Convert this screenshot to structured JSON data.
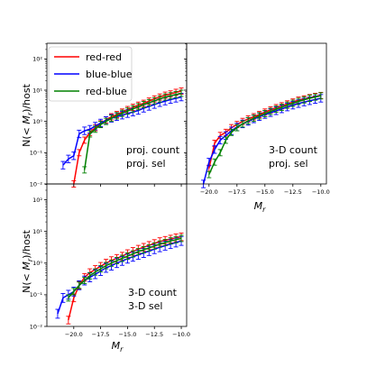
{
  "chart_data": {
    "type": "line",
    "figure_ylabel": "N(< M_r)/host",
    "legend": {
      "placement": "top-left",
      "entries": [
        {
          "name": "red-red",
          "color": "#ff0000"
        },
        {
          "name": "blue-blue",
          "color": "#0000ff"
        },
        {
          "name": "red-blue",
          "color": "#008000"
        }
      ]
    },
    "panels": [
      {
        "id": "top-left",
        "annotation": [
          "proj. count",
          "proj. sel"
        ],
        "xlabel": "",
        "ylabel": "N(< M_r)/host",
        "xlim": [
          -22.5,
          -9.5
        ],
        "ylim_log10": [
          -2,
          2.5
        ],
        "yscale": "log",
        "x_tick_labels": [],
        "y_tick_labels": [
          "10⁻²",
          "10⁻¹",
          "10⁰",
          "10¹",
          "10²"
        ],
        "series": [
          {
            "name": "red-red",
            "color": "#ff0000",
            "x": [
              -20.0,
              -19.5,
              -19.0,
              -18.5,
              -18.0,
              -17.5,
              -17.0,
              -16.5,
              -16.0,
              -15.5,
              -15.0,
              -14.5,
              -14.0,
              -13.5,
              -13.0,
              -12.5,
              -12.0,
              -11.5,
              -11.0,
              -10.5,
              -10.0
            ],
            "y_log10": [
              -2.0,
              -1.0,
              -0.6,
              -0.35,
              -0.2,
              -0.08,
              0.05,
              0.15,
              0.22,
              0.3,
              0.38,
              0.45,
              0.52,
              0.58,
              0.65,
              0.72,
              0.78,
              0.84,
              0.88,
              0.93,
              0.97
            ],
            "err": 0.1
          },
          {
            "name": "blue-blue",
            "color": "#0000ff",
            "x": [
              -21.0,
              -20.5,
              -20.0,
              -19.5,
              -19.0,
              -18.5,
              -18.0,
              -17.5,
              -17.0,
              -16.5,
              -16.0,
              -15.5,
              -15.0,
              -14.5,
              -14.0,
              -13.5,
              -13.0,
              -12.5,
              -12.0,
              -11.5,
              -11.0,
              -10.5,
              -10.0
            ],
            "y_log10": [
              -1.4,
              -1.2,
              -1.1,
              -0.4,
              -0.3,
              -0.25,
              -0.15,
              -0.05,
              0.03,
              0.1,
              0.15,
              0.2,
              0.25,
              0.3,
              0.35,
              0.42,
              0.48,
              0.54,
              0.6,
              0.65,
              0.7,
              0.74,
              0.78
            ],
            "err": 0.12
          },
          {
            "name": "red-blue",
            "color": "#008000",
            "x": [
              -19.0,
              -18.5,
              -18.0,
              -17.5,
              -17.0,
              -16.5,
              -16.0,
              -15.5,
              -15.0,
              -14.5,
              -14.0,
              -13.5,
              -13.0,
              -12.5,
              -12.0,
              -11.5,
              -11.0,
              -10.5,
              -10.0
            ],
            "y_log10": [
              -1.55,
              -0.4,
              -0.25,
              -0.1,
              0.0,
              0.1,
              0.18,
              0.26,
              0.33,
              0.4,
              0.47,
              0.54,
              0.6,
              0.66,
              0.72,
              0.78,
              0.82,
              0.86,
              0.9
            ],
            "err": 0.1
          }
        ]
      },
      {
        "id": "top-right",
        "annotation": [
          "3-D count",
          "proj. sel"
        ],
        "xlabel": "M_r",
        "ylabel": "",
        "xlim": [
          -22.0,
          -9.5
        ],
        "ylim_log10": [
          -2,
          2.5
        ],
        "yscale": "log",
        "x_tick_labels": [
          "−20.0",
          "−17.5",
          "−15.0",
          "−12.5",
          "−10.0"
        ],
        "x_ticks": [
          -20.0,
          -17.5,
          -15.0,
          -12.5,
          -10.0
        ],
        "y_tick_labels": [],
        "series": [
          {
            "name": "red-red",
            "color": "#ff0000",
            "x": [
              -20.0,
              -19.5,
              -19.0,
              -18.5,
              -18.0,
              -17.5,
              -17.0,
              -16.5,
              -16.0,
              -15.5,
              -15.0,
              -14.5,
              -14.0,
              -13.5,
              -13.0,
              -12.5,
              -12.0,
              -11.5,
              -11.0,
              -10.5,
              -10.0
            ],
            "y_log10": [
              -1.5,
              -0.7,
              -0.45,
              -0.35,
              -0.2,
              -0.1,
              0.0,
              0.08,
              0.15,
              0.22,
              0.3,
              0.37,
              0.44,
              0.5,
              0.56,
              0.62,
              0.68,
              0.72,
              0.76,
              0.8,
              0.83
            ],
            "err": 0.1
          },
          {
            "name": "blue-blue",
            "color": "#0000ff",
            "x": [
              -20.5,
              -20.0,
              -19.5,
              -19.0,
              -18.5,
              -18.0,
              -17.5,
              -17.0,
              -16.5,
              -16.0,
              -15.5,
              -15.0,
              -14.5,
              -14.0,
              -13.5,
              -13.0,
              -12.5,
              -12.0,
              -11.5,
              -11.0,
              -10.5,
              -10.0
            ],
            "y_log10": [
              -2.0,
              -1.3,
              -0.9,
              -0.6,
              -0.45,
              -0.3,
              -0.18,
              -0.08,
              0.0,
              0.08,
              0.15,
              0.22,
              0.28,
              0.34,
              0.4,
              0.46,
              0.52,
              0.57,
              0.62,
              0.66,
              0.7,
              0.74
            ],
            "err": 0.12
          },
          {
            "name": "red-blue",
            "color": "#008000",
            "x": [
              -20.0,
              -19.5,
              -19.0,
              -18.5,
              -18.0,
              -17.5,
              -17.0,
              -16.5,
              -16.0,
              -15.5,
              -15.0,
              -14.5,
              -14.0,
              -13.5,
              -13.0,
              -12.5,
              -12.0,
              -11.5,
              -11.0,
              -10.5,
              -10.0
            ],
            "y_log10": [
              -1.7,
              -1.3,
              -1.0,
              -0.6,
              -0.35,
              -0.2,
              -0.08,
              0.02,
              0.1,
              0.18,
              0.25,
              0.32,
              0.39,
              0.45,
              0.52,
              0.58,
              0.64,
              0.69,
              0.74,
              0.78,
              0.82
            ],
            "err": 0.1
          }
        ]
      },
      {
        "id": "bottom-left",
        "annotation": [
          "3-D count",
          "3-D sel"
        ],
        "xlabel": "M_r",
        "ylabel": "N(< M_r)/host",
        "xlim": [
          -22.5,
          -9.5
        ],
        "ylim_log10": [
          -2,
          2.5
        ],
        "yscale": "log",
        "x_tick_labels": [
          "−20.0",
          "−17.5",
          "−15.0",
          "−12.5",
          "−10.0"
        ],
        "x_ticks": [
          -20.0,
          -17.5,
          -15.0,
          -12.5,
          -10.0
        ],
        "y_tick_labels": [
          "10⁻²",
          "10⁻¹",
          "10⁰",
          "10¹",
          "10²"
        ],
        "series": [
          {
            "name": "red-red",
            "color": "#ff0000",
            "x": [
              -20.5,
              -20.0,
              -19.5,
              -19.0,
              -18.5,
              -18.0,
              -17.5,
              -17.0,
              -16.5,
              -16.0,
              -15.5,
              -15.0,
              -14.5,
              -14.0,
              -13.5,
              -13.0,
              -12.5,
              -12.0,
              -11.5,
              -11.0,
              -10.5,
              -10.0
            ],
            "y_log10": [
              -1.8,
              -1.1,
              -0.7,
              -0.45,
              -0.3,
              -0.2,
              -0.1,
              0.0,
              0.08,
              0.15,
              0.22,
              0.3,
              0.37,
              0.44,
              0.5,
              0.56,
              0.62,
              0.68,
              0.72,
              0.76,
              0.8,
              0.83
            ],
            "err": 0.12
          },
          {
            "name": "blue-blue",
            "color": "#0000ff",
            "x": [
              -21.5,
              -21.0,
              -20.5,
              -20.0,
              -19.5,
              -19.0,
              -18.5,
              -18.0,
              -17.5,
              -17.0,
              -16.5,
              -16.0,
              -15.5,
              -15.0,
              -14.5,
              -14.0,
              -13.5,
              -13.0,
              -12.5,
              -12.0,
              -11.5,
              -11.0,
              -10.5,
              -10.0
            ],
            "y_log10": [
              -1.6,
              -1.1,
              -1.0,
              -0.9,
              -0.7,
              -0.55,
              -0.45,
              -0.35,
              -0.25,
              -0.15,
              -0.08,
              0.0,
              0.07,
              0.14,
              0.2,
              0.26,
              0.32,
              0.38,
              0.44,
              0.5,
              0.55,
              0.6,
              0.65,
              0.7
            ],
            "err": 0.14
          },
          {
            "name": "red-blue",
            "color": "#008000",
            "x": [
              -20.5,
              -20.0,
              -19.5,
              -19.0,
              -18.5,
              -18.0,
              -17.5,
              -17.0,
              -16.5,
              -16.0,
              -15.5,
              -15.0,
              -14.5,
              -14.0,
              -13.5,
              -13.0,
              -12.5,
              -12.0,
              -11.5,
              -11.0,
              -10.5,
              -10.0
            ],
            "y_log10": [
              -1.1,
              -0.9,
              -0.7,
              -0.55,
              -0.4,
              -0.28,
              -0.18,
              -0.08,
              0.0,
              0.08,
              0.15,
              0.22,
              0.29,
              0.36,
              0.42,
              0.48,
              0.54,
              0.6,
              0.65,
              0.7,
              0.74,
              0.78
            ],
            "err": 0.1
          }
        ]
      }
    ]
  }
}
